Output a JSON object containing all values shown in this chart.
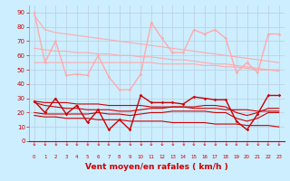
{
  "background_color": "#cceeff",
  "grid_color": "#bbccdd",
  "xlabel": "Vent moyen/en rafales ( km/h )",
  "xlabel_color": "#cc0000",
  "xlabel_fontsize": 6.5,
  "tick_color": "#cc0000",
  "ylim": [
    0,
    95
  ],
  "xlim": [
    -0.5,
    23.5
  ],
  "yticks": [
    0,
    10,
    20,
    30,
    40,
    50,
    60,
    70,
    80,
    90
  ],
  "xticks": [
    0,
    1,
    2,
    3,
    4,
    5,
    6,
    7,
    8,
    9,
    10,
    11,
    12,
    13,
    14,
    15,
    16,
    17,
    18,
    19,
    20,
    21,
    22,
    23
  ],
  "series": [
    {
      "color": "#ffaaaa",
      "linewidth": 1.0,
      "marker": "D",
      "markersize": 1.8,
      "values": [
        90,
        55,
        70,
        46,
        47,
        46,
        60,
        45,
        36,
        36,
        47,
        83,
        72,
        62,
        62,
        78,
        75,
        78,
        72,
        48,
        55,
        48,
        75,
        75
      ]
    },
    {
      "color": "#ffaaaa",
      "linewidth": 0.8,
      "marker": null,
      "markersize": 0,
      "values": [
        88,
        78,
        76,
        75,
        74,
        73,
        72,
        71,
        70,
        69,
        68,
        67,
        66,
        65,
        64,
        63,
        62,
        61,
        60,
        59,
        58,
        57,
        56,
        55
      ]
    },
    {
      "color": "#ffaaaa",
      "linewidth": 0.8,
      "marker": null,
      "markersize": 0,
      "values": [
        65,
        64,
        63,
        63,
        62,
        62,
        61,
        61,
        60,
        60,
        59,
        59,
        58,
        57,
        57,
        56,
        55,
        54,
        54,
        53,
        52,
        51,
        50,
        50
      ]
    },
    {
      "color": "#ffaaaa",
      "linewidth": 0.8,
      "marker": null,
      "markersize": 0,
      "values": [
        55,
        55,
        55,
        55,
        55,
        55,
        55,
        55,
        55,
        55,
        55,
        55,
        54,
        54,
        54,
        54,
        53,
        53,
        52,
        52,
        51,
        50,
        50,
        49
      ]
    },
    {
      "color": "#cc0000",
      "linewidth": 1.0,
      "marker": "D",
      "markersize": 1.8,
      "values": [
        28,
        20,
        30,
        19,
        25,
        13,
        22,
        8,
        15,
        8,
        32,
        27,
        27,
        27,
        26,
        31,
        30,
        29,
        29,
        14,
        8,
        19,
        32,
        32
      ]
    },
    {
      "color": "#cc0000",
      "linewidth": 0.8,
      "marker": null,
      "markersize": 0,
      "values": [
        28,
        27,
        27,
        27,
        26,
        26,
        26,
        25,
        25,
        25,
        25,
        24,
        24,
        24,
        24,
        23,
        23,
        23,
        22,
        22,
        22,
        21,
        21,
        21
      ]
    },
    {
      "color": "#cc0000",
      "linewidth": 0.8,
      "marker": null,
      "markersize": 0,
      "values": [
        27,
        25,
        24,
        23,
        23,
        22,
        22,
        22,
        21,
        21,
        22,
        23,
        23,
        24,
        24,
        24,
        25,
        25,
        24,
        20,
        18,
        20,
        23,
        23
      ]
    },
    {
      "color": "#cc0000",
      "linewidth": 0.8,
      "marker": null,
      "markersize": 0,
      "values": [
        20,
        19,
        19,
        19,
        19,
        19,
        20,
        19,
        19,
        18,
        19,
        20,
        20,
        21,
        21,
        21,
        21,
        20,
        20,
        16,
        14,
        16,
        20,
        20
      ]
    },
    {
      "color": "#cc0000",
      "linewidth": 0.8,
      "marker": null,
      "markersize": 0,
      "values": [
        18,
        17,
        17,
        16,
        16,
        16,
        15,
        15,
        15,
        14,
        14,
        14,
        14,
        13,
        13,
        13,
        13,
        12,
        12,
        12,
        11,
        11,
        11,
        10
      ]
    }
  ],
  "wind_arrows": "↓",
  "arrow_color": "#cc0000"
}
